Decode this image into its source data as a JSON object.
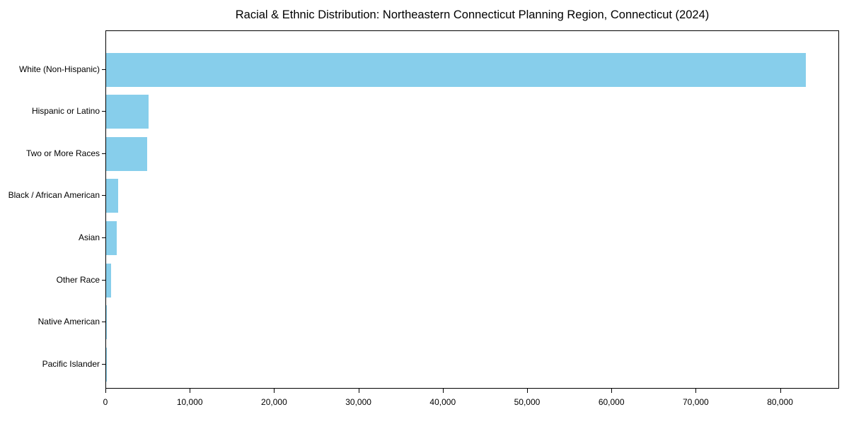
{
  "chart_data": {
    "type": "bar",
    "orientation": "horizontal",
    "title": "Racial & Ethnic Distribution: Northeastern Connecticut Planning Region, Connecticut (2024)",
    "categories": [
      "White (Non-Hispanic)",
      "Hispanic or Latino",
      "Two or More Races",
      "Black / African American",
      "Asian",
      "Other Race",
      "Native American",
      "Pacific Islander"
    ],
    "values": [
      83000,
      5000,
      4900,
      1400,
      1300,
      550,
      100,
      30
    ],
    "xlabel": "",
    "ylabel": "",
    "xlim": [
      0,
      87000
    ],
    "x_ticks": [
      0,
      10000,
      20000,
      30000,
      40000,
      50000,
      60000,
      70000,
      80000
    ],
    "x_tick_labels": [
      "0",
      "10,000",
      "20,000",
      "30,000",
      "40,000",
      "50,000",
      "60,000",
      "70,000",
      "80,000"
    ],
    "bar_color": "#87CEEB",
    "axis_color": "#000000",
    "text_color": "#000000",
    "grid": false,
    "legend": null
  }
}
